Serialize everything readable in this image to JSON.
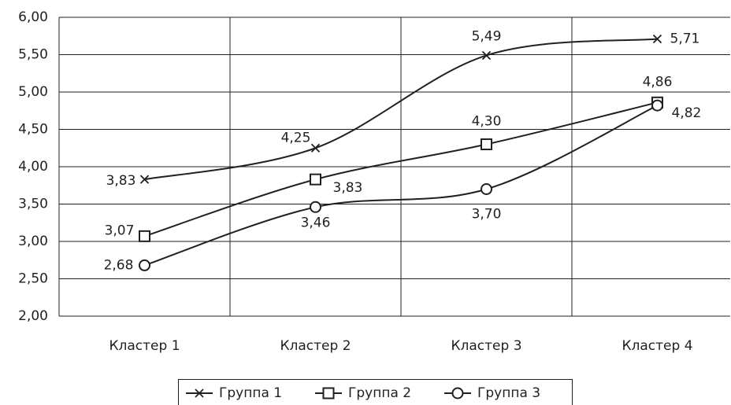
{
  "chart_data": {
    "type": "line",
    "categories": [
      "Кластер 1",
      "Кластер 2",
      "Кластер 3",
      "Кластер 4"
    ],
    "series": [
      {
        "name": "Группа 1",
        "color": "#231f20",
        "marker": "x",
        "values": [
          3.83,
          4.25,
          5.49,
          5.71
        ],
        "value_labels": [
          "3,83",
          "4,25",
          "5,49",
          "5,71"
        ]
      },
      {
        "name": "Группа 2",
        "color": "#231f20",
        "marker": "square",
        "values": [
          3.07,
          3.83,
          4.3,
          4.86
        ],
        "value_labels": [
          "3,07",
          "3,83",
          "4,30",
          "4,86"
        ]
      },
      {
        "name": "Группа 3",
        "color": "#231f20",
        "marker": "circle",
        "values": [
          2.68,
          3.46,
          3.7,
          4.82
        ],
        "value_labels": [
          "2,68",
          "3,46",
          "3,70",
          "4,82"
        ]
      }
    ],
    "ylim": [
      2,
      6
    ],
    "yticks": [
      {
        "value": 2,
        "label": "2,00"
      },
      {
        "value": 2.5,
        "label": "2,50"
      },
      {
        "value": 3,
        "label": "3,00"
      },
      {
        "value": 3.5,
        "label": "3,50"
      },
      {
        "value": 4,
        "label": "4,00"
      },
      {
        "value": 4.5,
        "label": "4,50"
      },
      {
        "value": 5,
        "label": "5,00"
      },
      {
        "value": 5.5,
        "label": "5,50"
      },
      {
        "value": 6,
        "label": "6,00"
      }
    ],
    "grid": true,
    "legend": "bottom"
  }
}
